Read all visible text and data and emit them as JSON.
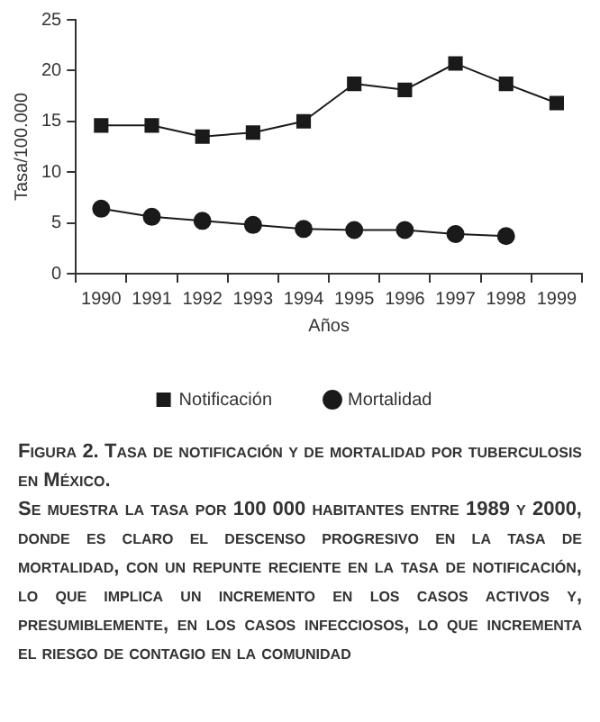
{
  "chart_data": {
    "type": "line",
    "title": "Figura 2. Tasa de notificación y de mortalidad por tuberculosis en México.",
    "subtitle": "Se muestra la tasa por 100 000 habitantes entre 1989 y 2000, donde es claro el descenso progresivo en la tasa de mortalidad, con un repunte reciente en la tasa de notificación, lo que implica un incremento en los casos activos y, presumiblemente, en los casos infecciosos, lo que incrementa el riesgo de contagio en la comunidad",
    "xlabel": "Años",
    "ylabel": "Tasa/100.000",
    "categories": [
      "1990",
      "1991",
      "1992",
      "1993",
      "1994",
      "1995",
      "1996",
      "1997",
      "1998",
      "1999"
    ],
    "series": [
      {
        "name": "Notificación",
        "color": "#1a1a1a",
        "marker": "square",
        "values": [
          14.6,
          14.6,
          13.5,
          13.9,
          15.0,
          18.7,
          18.1,
          20.7,
          18.7,
          16.8
        ]
      },
      {
        "name": "Mortalidad",
        "color": "#1a1a1a",
        "marker": "circle",
        "values": [
          6.4,
          5.6,
          5.2,
          4.8,
          4.4,
          4.3,
          4.3,
          3.9,
          3.7,
          null
        ]
      }
    ],
    "ylim": [
      0,
      25
    ],
    "yticks": [
      0,
      5,
      10,
      15,
      20,
      25
    ],
    "grid": false,
    "legend": "bottom"
  }
}
